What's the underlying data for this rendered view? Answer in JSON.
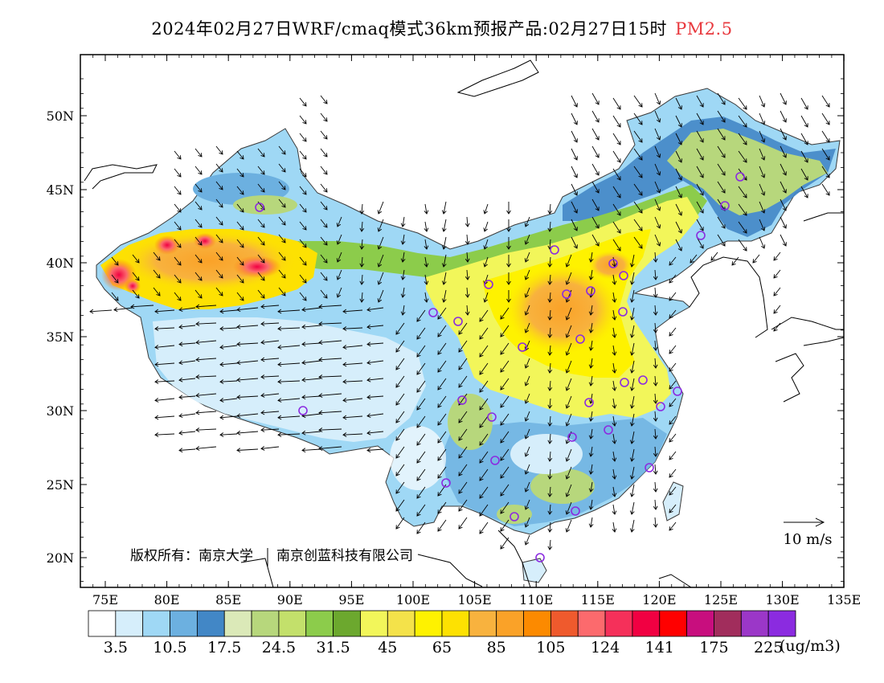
{
  "title": {
    "main": "2024年02月27日WRF/cmaq模式36km预报产品:02月27日15时",
    "pollutant": "PM2.5",
    "pollutant_color": "#e8383d"
  },
  "map": {
    "lon_ticks": [
      "75E",
      "80E",
      "85E",
      "90E",
      "95E",
      "100E",
      "105E",
      "110E",
      "115E",
      "120E",
      "125E",
      "130E",
      "135E"
    ],
    "lat_ticks": [
      "50N",
      "45N",
      "40N",
      "35N",
      "30N",
      "25N",
      "20N"
    ],
    "wind_reference": "10 m/s",
    "copyright": "版权所有：南京大学 | 南京创蓝科技有限公司",
    "copyright_parts": [
      "版权所有：南京大学",
      "南京创蓝科技有限公司"
    ]
  },
  "colorbar": {
    "colors": [
      "#ffffff",
      "#d6eefb",
      "#9fd8f5",
      "#6cb0e0",
      "#4287c6",
      "#dbe9b8",
      "#b7d77c",
      "#c3e06b",
      "#8ccc4b",
      "#6ca82e",
      "#f2f65a",
      "#f4e24a",
      "#fef200",
      "#fde102",
      "#f8b23e",
      "#faa228",
      "#fc8a00",
      "#ef5a2d",
      "#fc6a6d",
      "#f5305a",
      "#f10042",
      "#ff0000",
      "#c80e7e",
      "#a12d5c",
      "#9b37c8",
      "#8b2be0"
    ],
    "labels": [
      "3.5",
      "10.5",
      "17.5",
      "24.5",
      "31.5",
      "45",
      "65",
      "85",
      "105",
      "124",
      "141",
      "175",
      "225"
    ],
    "unit": "(ug/m3)"
  }
}
